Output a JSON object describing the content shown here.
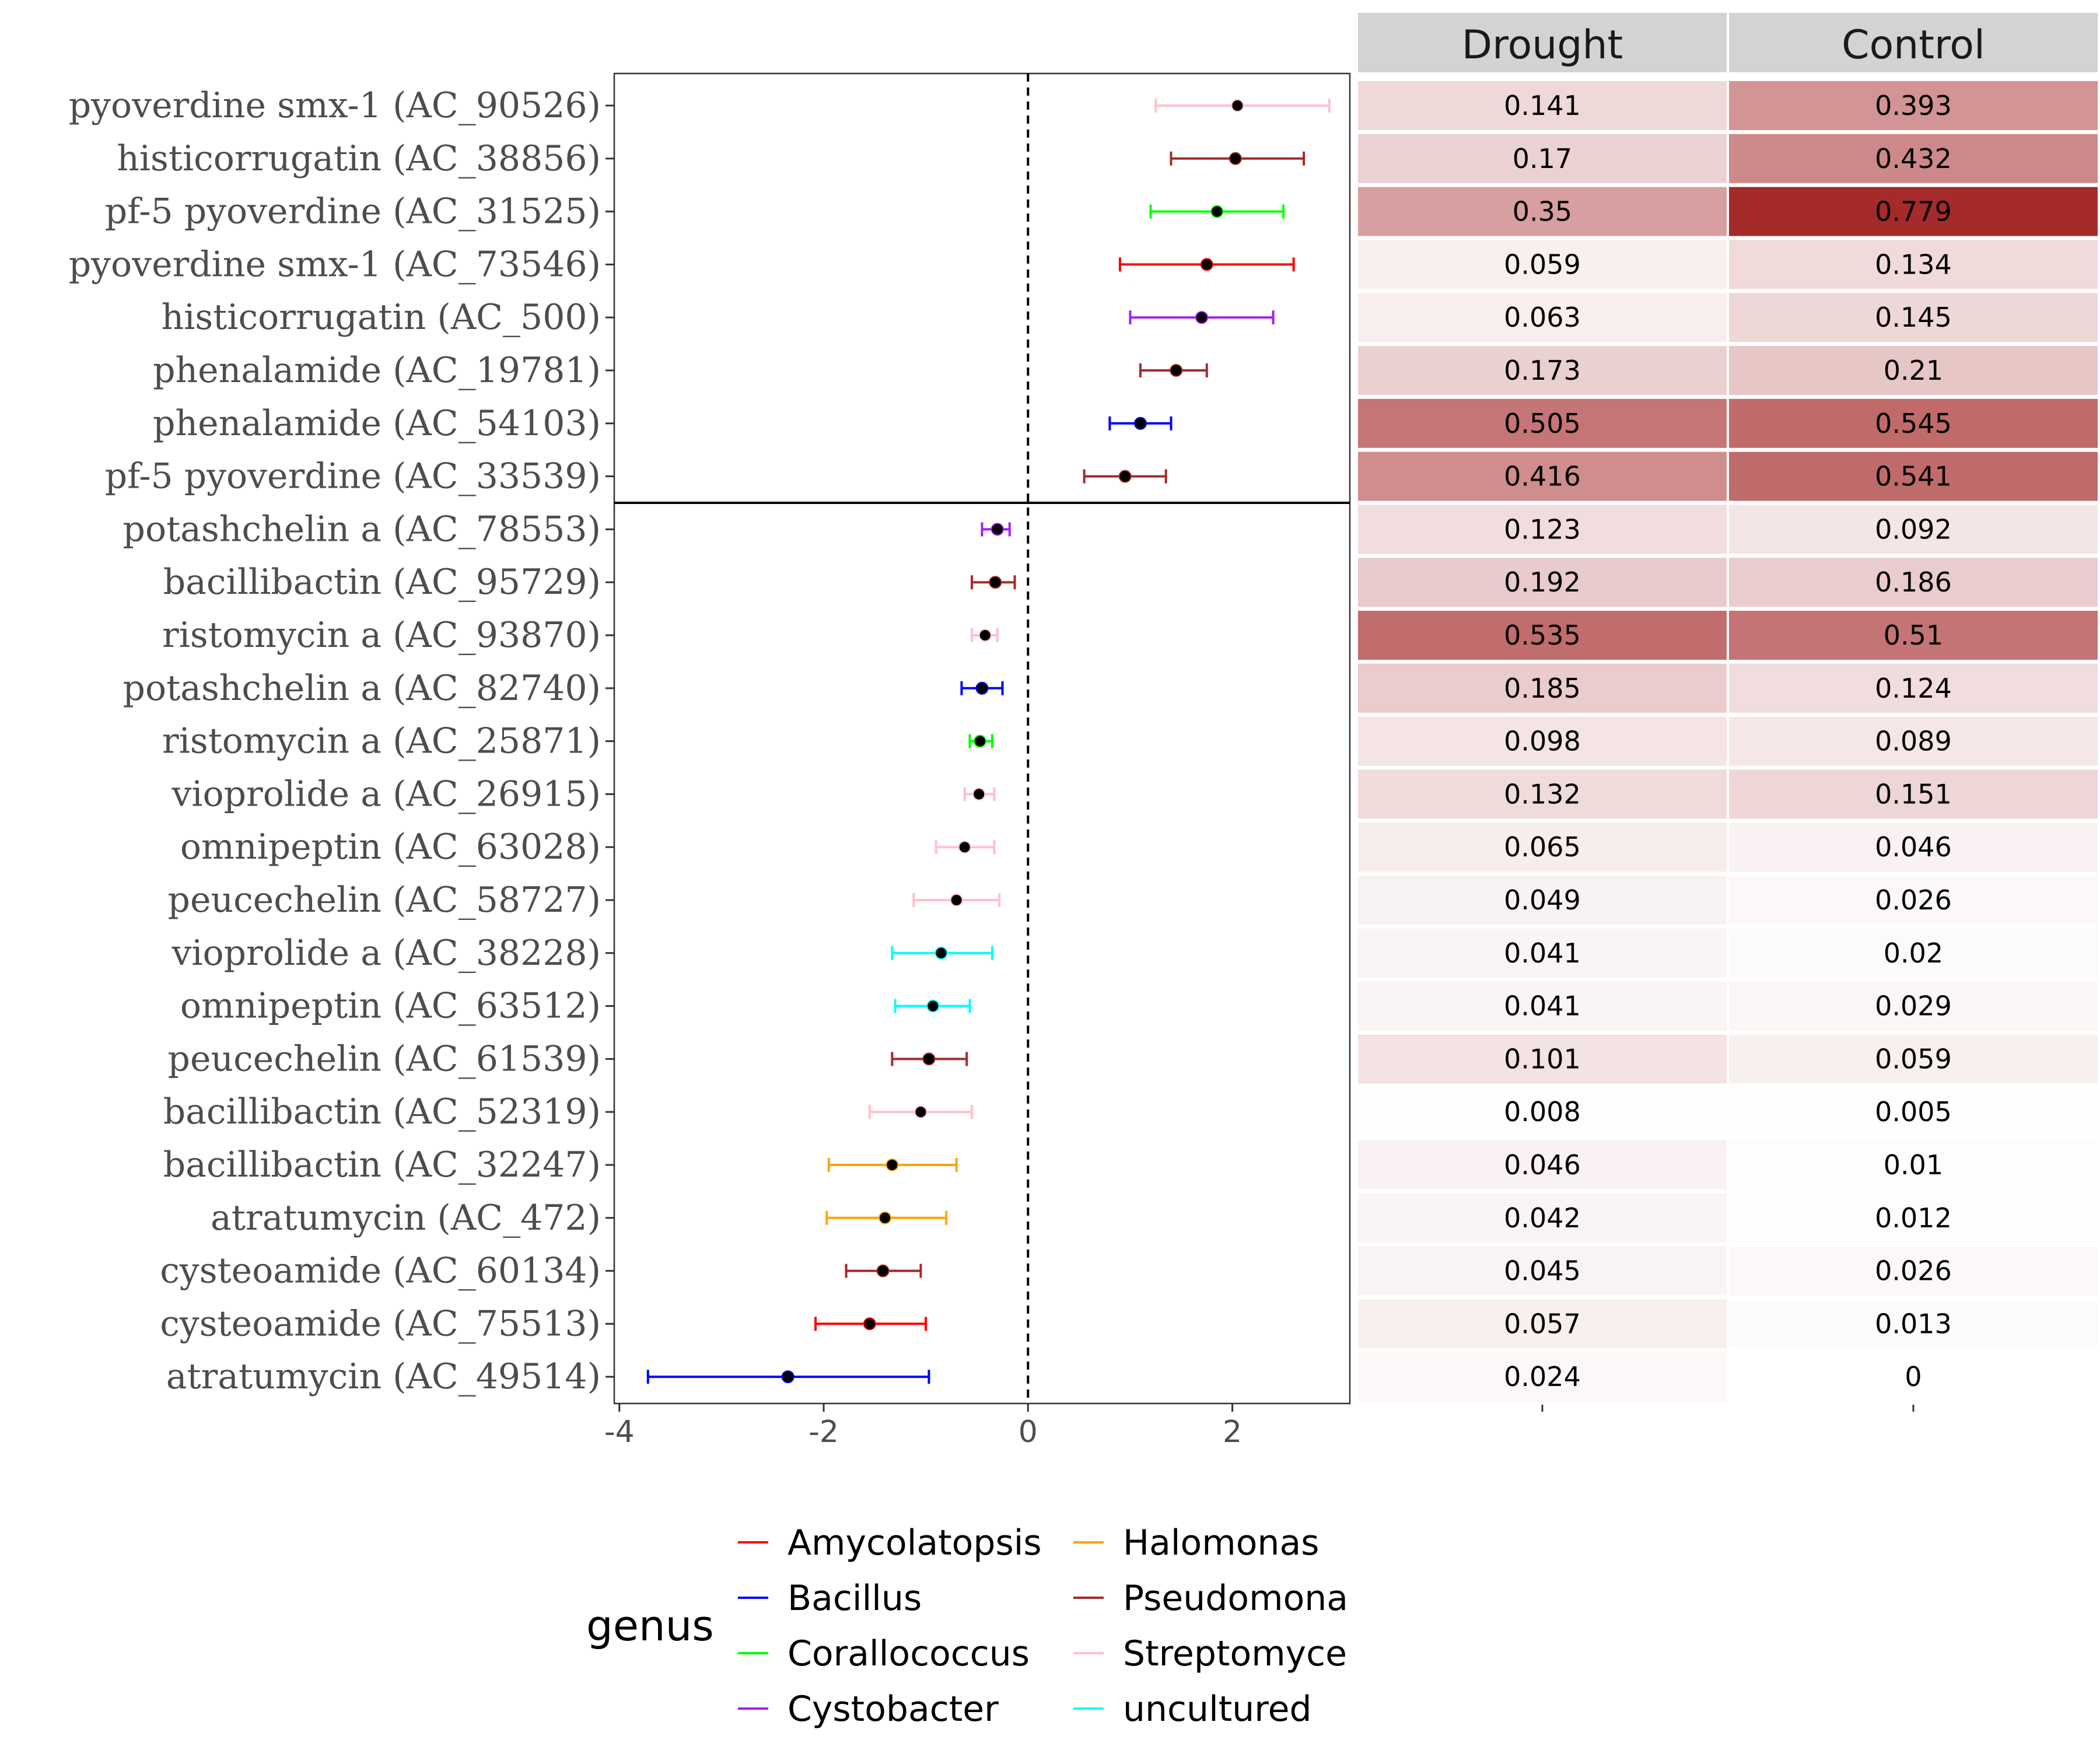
{
  "chart_data": [
    {
      "type": "scatter",
      "title": "",
      "xlabel": "",
      "ylabel": "",
      "xlim": [
        -4.05,
        3.15
      ],
      "xticks": [
        -4,
        -2,
        0,
        2
      ],
      "grid": false,
      "reference_line_x": 0,
      "points": [
        {
          "label": "pyoverdine smx-1 (AC_90526)",
          "genus": "Streptomyces",
          "x": 2.05,
          "lo": 1.25,
          "hi": 2.95
        },
        {
          "label": "histicorrugatin (AC_38856)",
          "genus": "Pseudomonas",
          "x": 2.03,
          "lo": 1.4,
          "hi": 2.7
        },
        {
          "label": "pf-5 pyoverdine (AC_31525)",
          "genus": "Corallococcus",
          "x": 1.85,
          "lo": 1.2,
          "hi": 2.5
        },
        {
          "label": "pyoverdine smx-1 (AC_73546)",
          "genus": "Amycolatopsis",
          "x": 1.75,
          "lo": 0.9,
          "hi": 2.6
        },
        {
          "label": "histicorrugatin (AC_500)",
          "genus": "Cystobacter",
          "x": 1.7,
          "lo": 1.0,
          "hi": 2.4
        },
        {
          "label": "phenalamide (AC_19781)",
          "genus": "Pseudomonas",
          "x": 1.45,
          "lo": 1.1,
          "hi": 1.75
        },
        {
          "label": "phenalamide (AC_54103)",
          "genus": "Bacillus",
          "x": 1.1,
          "lo": 0.8,
          "hi": 1.4
        },
        {
          "label": "pf-5 pyoverdine (AC_33539)",
          "genus": "Pseudomonas",
          "x": 0.95,
          "lo": 0.55,
          "hi": 1.35
        },
        {
          "label": "potashchelin a (AC_78553)",
          "genus": "Cystobacter",
          "x": -0.3,
          "lo": -0.45,
          "hi": -0.18
        },
        {
          "label": "bacillibactin (AC_95729)",
          "genus": "Pseudomonas",
          "x": -0.32,
          "lo": -0.55,
          "hi": -0.13
        },
        {
          "label": "ristomycin a (AC_93870)",
          "genus": "Streptomyces",
          "x": -0.42,
          "lo": -0.55,
          "hi": -0.3
        },
        {
          "label": "potashchelin a (AC_82740)",
          "genus": "Bacillus",
          "x": -0.45,
          "lo": -0.65,
          "hi": -0.25
        },
        {
          "label": "ristomycin a (AC_25871)",
          "genus": "Corallococcus",
          "x": -0.47,
          "lo": -0.57,
          "hi": -0.35
        },
        {
          "label": "vioprolide a (AC_26915)",
          "genus": "Streptomyces",
          "x": -0.48,
          "lo": -0.62,
          "hi": -0.33
        },
        {
          "label": "omnipeptin (AC_63028)",
          "genus": "Streptomyces",
          "x": -0.62,
          "lo": -0.9,
          "hi": -0.33
        },
        {
          "label": "peucechelin (AC_58727)",
          "genus": "Streptomyces",
          "x": -0.7,
          "lo": -1.12,
          "hi": -0.28
        },
        {
          "label": "vioprolide a (AC_38228)",
          "genus": "uncultured",
          "x": -0.85,
          "lo": -1.33,
          "hi": -0.35
        },
        {
          "label": "omnipeptin (AC_63512)",
          "genus": "uncultured",
          "x": -0.93,
          "lo": -1.3,
          "hi": -0.57
        },
        {
          "label": "peucechelin (AC_61539)",
          "genus": "Pseudomonas",
          "x": -0.97,
          "lo": -1.33,
          "hi": -0.6
        },
        {
          "label": "bacillibactin (AC_52319)",
          "genus": "Streptomyces",
          "x": -1.05,
          "lo": -1.55,
          "hi": -0.55
        },
        {
          "label": "bacillibactin (AC_32247)",
          "genus": "Halomonas",
          "x": -1.33,
          "lo": -1.95,
          "hi": -0.7
        },
        {
          "label": "atratumycin (AC_472)",
          "genus": "Halomonas",
          "x": -1.4,
          "lo": -1.97,
          "hi": -0.8
        },
        {
          "label": "cysteoamide (AC_60134)",
          "genus": "Pseudomonas",
          "x": -1.42,
          "lo": -1.78,
          "hi": -1.05
        },
        {
          "label": "cysteoamide (AC_75513)",
          "genus": "Amycolatopsis",
          "x": -1.55,
          "lo": -2.08,
          "hi": -1.0
        },
        {
          "label": "atratumycin (AC_49514)",
          "genus": "Bacillus",
          "x": -2.35,
          "lo": -3.72,
          "hi": -0.97
        }
      ],
      "separator_after_index": 7
    },
    {
      "type": "heatmap",
      "columns": [
        "Drought",
        "Control"
      ],
      "max_value": 0.779,
      "rows": [
        [
          0.141,
          0.393
        ],
        [
          0.17,
          0.432
        ],
        [
          0.35,
          0.779
        ],
        [
          0.059,
          0.134
        ],
        [
          0.063,
          0.145
        ],
        [
          0.173,
          0.21
        ],
        [
          0.505,
          0.545
        ],
        [
          0.416,
          0.541
        ],
        [
          0.123,
          0.092
        ],
        [
          0.192,
          0.186
        ],
        [
          0.535,
          0.51
        ],
        [
          0.185,
          0.124
        ],
        [
          0.098,
          0.089
        ],
        [
          0.132,
          0.151
        ],
        [
          0.065,
          0.046
        ],
        [
          0.049,
          0.026
        ],
        [
          0.041,
          0.02
        ],
        [
          0.041,
          0.029
        ],
        [
          0.101,
          0.059
        ],
        [
          0.008,
          0.005
        ],
        [
          0.046,
          0.01
        ],
        [
          0.042,
          0.012
        ],
        [
          0.045,
          0.026
        ],
        [
          0.057,
          0.013
        ],
        [
          0.024,
          0
        ]
      ]
    }
  ],
  "legend": {
    "title": "genus",
    "placement": "bottom",
    "items": [
      {
        "name": "Amycolatopsis",
        "label": "Amycolatopsis",
        "color": "#ff0000"
      },
      {
        "name": "Bacillus",
        "label": "Bacillus",
        "color": "#0000ff"
      },
      {
        "name": "Corallococcus",
        "label": "Corallococcus",
        "color": "#00ff00"
      },
      {
        "name": "Cystobacter",
        "label": "Cystobacter",
        "color": "#a020f0"
      },
      {
        "name": "Halomonas",
        "label": "Halomonas",
        "color": "#ffa500"
      },
      {
        "name": "Pseudomonas",
        "label": "Pseudomona",
        "color": "#a52a2a"
      },
      {
        "name": "Streptomyces",
        "label": "Streptomyce",
        "color": "#ffc0cb"
      },
      {
        "name": "uncultured",
        "label": "uncultured",
        "color": "#00ffff"
      }
    ]
  },
  "colors": {
    "heat_low": "#ffffff",
    "heat_high": "#a52a2a",
    "header_bg": "#d3d3d3",
    "point_fill": "#000000"
  }
}
